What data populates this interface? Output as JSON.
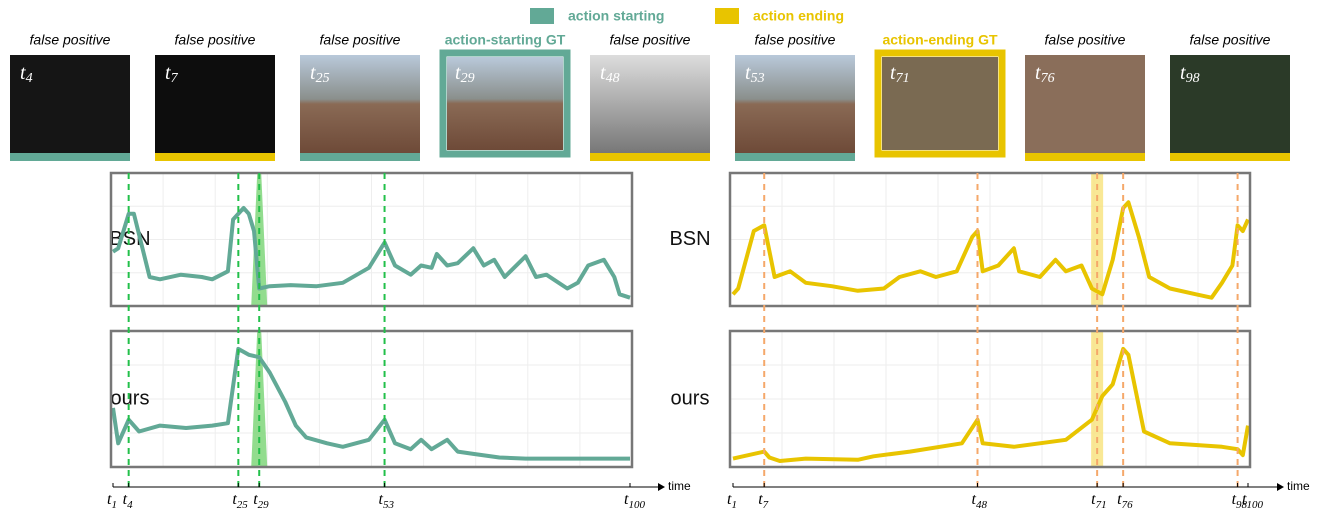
{
  "time_symbol": "t",
  "legend": [
    {
      "label": "action starting",
      "color": "#62a996"
    },
    {
      "label": "action ending",
      "color": "#e8c400"
    }
  ],
  "thumbnails": [
    {
      "caption": "false positive",
      "frame": 4,
      "color": "#62a996",
      "gt": false
    },
    {
      "caption": "false positive",
      "frame": 7,
      "color": "#e8c400",
      "gt": false
    },
    {
      "caption": "false positive",
      "frame": 25,
      "color": "#62a996",
      "gt": false
    },
    {
      "caption": "action-starting GT",
      "frame": 29,
      "color": "#62a996",
      "gt": true
    },
    {
      "caption": "false positive",
      "frame": 48,
      "color": "#e8c400",
      "gt": false
    },
    {
      "caption": "false positive",
      "frame": 53,
      "color": "#62a996",
      "gt": false
    },
    {
      "caption": "action-ending GT",
      "frame": 71,
      "color": "#e8c400",
      "gt": true
    },
    {
      "caption": "false positive",
      "frame": 76,
      "color": "#e8c400",
      "gt": false
    },
    {
      "caption": "false positive",
      "frame": 98,
      "color": "#e8c400",
      "gt": false
    }
  ],
  "groups": [
    {
      "axis_label": "time",
      "xlim": [
        1,
        100
      ],
      "ticks": [
        1,
        4,
        25,
        29,
        53,
        100
      ],
      "markers": [
        4,
        25,
        29,
        53
      ],
      "gt": 29,
      "color": "#62a996",
      "marker_color": "#22c04a",
      "gt_color": "#7fd67a",
      "panels": [
        {
          "row_label": "BSN",
          "x": [
            1,
            2,
            4,
            5,
            8,
            10,
            14,
            18,
            20,
            23,
            24,
            26,
            27,
            28,
            29,
            31,
            35,
            40,
            45,
            50,
            53,
            55,
            58,
            60,
            62,
            63,
            65,
            67,
            70,
            72,
            74,
            76,
            80,
            82,
            84,
            88,
            90,
            92,
            95,
            97,
            98,
            100
          ],
          "values": [
            0.42,
            0.45,
            0.75,
            0.75,
            0.2,
            0.18,
            0.22,
            0.2,
            0.18,
            0.25,
            0.7,
            0.8,
            0.75,
            0.6,
            0.1,
            0.12,
            0.13,
            0.12,
            0.15,
            0.28,
            0.5,
            0.3,
            0.22,
            0.3,
            0.28,
            0.4,
            0.3,
            0.32,
            0.45,
            0.3,
            0.35,
            0.2,
            0.38,
            0.2,
            0.22,
            0.1,
            0.15,
            0.3,
            0.35,
            0.2,
            0.05,
            0.02
          ]
        },
        {
          "row_label": "ours",
          "x": [
            1,
            2,
            4,
            6,
            10,
            15,
            20,
            23,
            25,
            27,
            29,
            31,
            34,
            36,
            38,
            42,
            45,
            50,
            53,
            55,
            58,
            60,
            62,
            65,
            67,
            70,
            75,
            80,
            100
          ],
          "values": [
            0.45,
            0.15,
            0.35,
            0.25,
            0.3,
            0.28,
            0.3,
            0.32,
            0.95,
            0.9,
            0.88,
            0.75,
            0.5,
            0.3,
            0.2,
            0.15,
            0.12,
            0.18,
            0.35,
            0.15,
            0.1,
            0.18,
            0.1,
            0.18,
            0.08,
            0.06,
            0.03,
            0.02,
            0.02
          ]
        }
      ]
    },
    {
      "axis_label": "time",
      "xlim": [
        1,
        100
      ],
      "ticks": [
        1,
        7,
        48,
        71,
        76,
        98,
        100
      ],
      "markers": [
        7,
        48,
        71,
        76,
        98
      ],
      "gt": 71,
      "color": "#e8c400",
      "marker_color": "#f5a86a",
      "gt_color": "#f7e27a",
      "panels": [
        {
          "row_label": "BSN",
          "x": [
            1,
            2,
            5,
            7,
            9,
            12,
            15,
            20,
            25,
            30,
            33,
            37,
            40,
            44,
            47,
            48,
            49,
            52,
            55,
            56,
            60,
            63,
            65,
            68,
            70,
            72,
            74,
            76,
            77,
            79,
            81,
            85,
            90,
            93,
            95,
            97,
            98,
            99,
            100
          ],
          "values": [
            0.05,
            0.1,
            0.6,
            0.65,
            0.2,
            0.25,
            0.15,
            0.12,
            0.08,
            0.1,
            0.2,
            0.25,
            0.2,
            0.25,
            0.55,
            0.6,
            0.25,
            0.3,
            0.45,
            0.25,
            0.2,
            0.35,
            0.25,
            0.3,
            0.1,
            0.05,
            0.35,
            0.8,
            0.85,
            0.55,
            0.2,
            0.1,
            0.05,
            0.02,
            0.15,
            0.3,
            0.65,
            0.6,
            0.7
          ]
        },
        {
          "row_label": "ours",
          "x": [
            1,
            7,
            8,
            10,
            15,
            25,
            28,
            35,
            45,
            48,
            49,
            55,
            65,
            70,
            72,
            74,
            76,
            77,
            80,
            85,
            95,
            98,
            99,
            100
          ],
          "values": [
            0.02,
            0.08,
            0.03,
            0,
            0.02,
            0.01,
            0.04,
            0.08,
            0.15,
            0.35,
            0.15,
            0.12,
            0.18,
            0.35,
            0.55,
            0.65,
            0.95,
            0.9,
            0.25,
            0.15,
            0.12,
            0.1,
            0.05,
            0.3
          ]
        }
      ]
    }
  ]
}
